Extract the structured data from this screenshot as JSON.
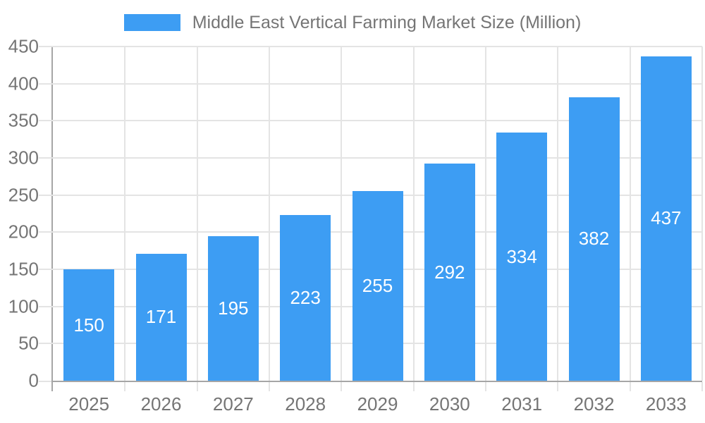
{
  "legend": {
    "label": "Middle East Vertical Farming Market Size (Million)"
  },
  "chart_data": {
    "type": "bar",
    "title": "Middle East Vertical Farming Market Size (Million)",
    "categories": [
      "2025",
      "2026",
      "2027",
      "2028",
      "2029",
      "2030",
      "2031",
      "2032",
      "2033"
    ],
    "values": [
      150,
      171,
      195,
      223,
      255,
      292,
      334,
      382,
      437
    ],
    "xlabel": "",
    "ylabel": "",
    "ylim": [
      0,
      450
    ],
    "ytick_step": 50,
    "grid": true,
    "legend_position": "top",
    "value_labels": "inside-center",
    "colors": {
      "bar": "#3D9DF3",
      "grid": "#E4E4E4",
      "axis_line": "#A6A6A6",
      "axis_label": "#757575",
      "value_label": "#FFFFFF"
    }
  }
}
